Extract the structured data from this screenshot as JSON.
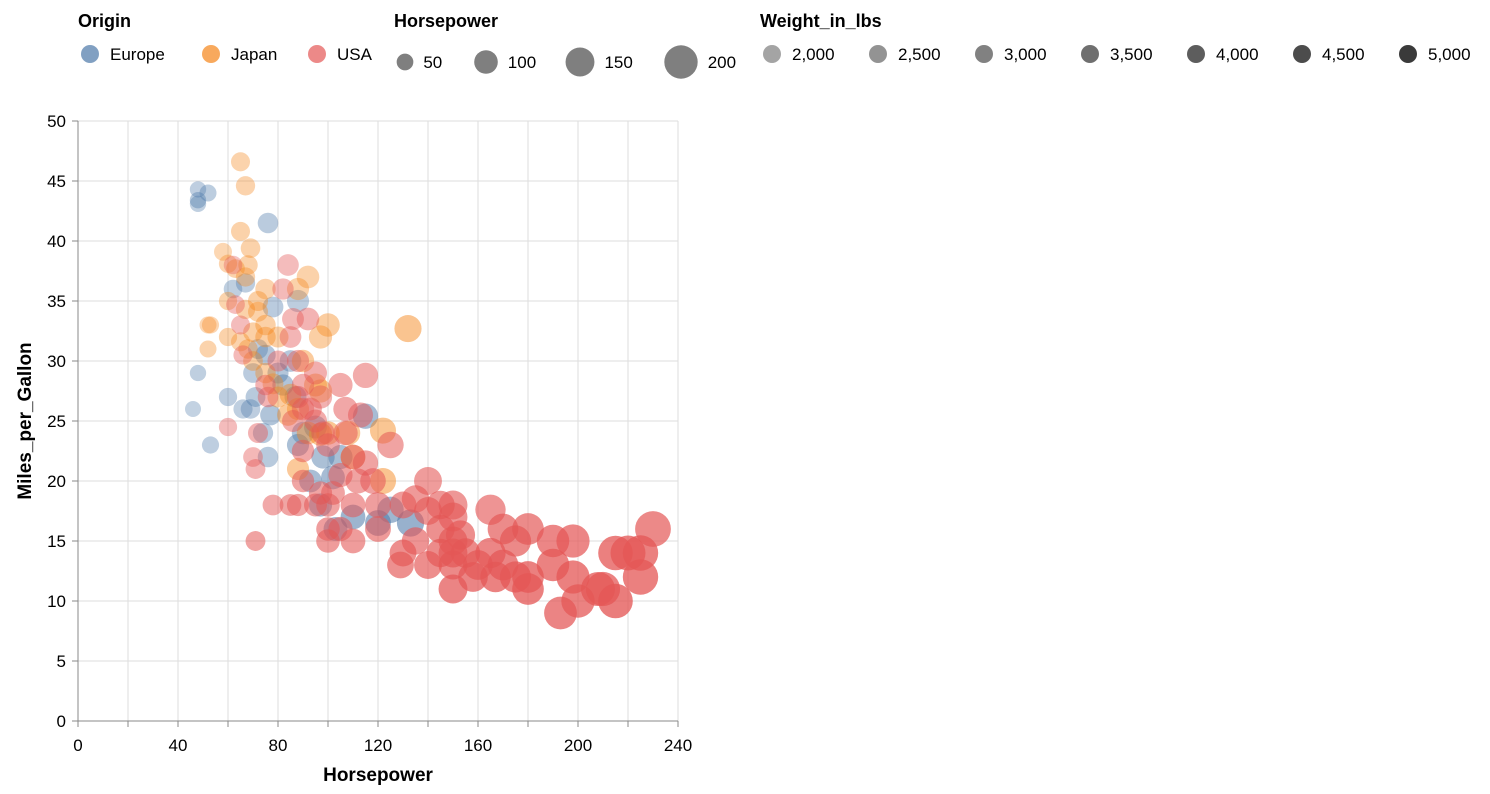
{
  "chart_data": {
    "type": "scatter",
    "xlabel": "Horsepower",
    "ylabel": "Miles_per_Gallon",
    "xlim": [
      0,
      240
    ],
    "ylim": [
      0,
      50
    ],
    "x_ticks": [
      0,
      20,
      40,
      60,
      80,
      100,
      120,
      140,
      160,
      180,
      200,
      220,
      240
    ],
    "x_tick_labels": [
      "0",
      "",
      "40",
      "",
      "80",
      "",
      "120",
      "",
      "160",
      "",
      "200",
      "",
      "240"
    ],
    "y_ticks": [
      0,
      5,
      10,
      15,
      20,
      25,
      30,
      35,
      40,
      45,
      50
    ],
    "y_tick_labels": [
      "0",
      "5",
      "10",
      "15",
      "20",
      "25",
      "30",
      "35",
      "40",
      "45",
      "50"
    ],
    "grid": true,
    "legend_placement": "top",
    "encoding": {
      "color": "Origin",
      "size": "Horsepower",
      "opacity": "Weight_in_lbs"
    },
    "legends": {
      "origin": {
        "title": "Origin",
        "items": [
          {
            "label": "Europe",
            "color": "#4c78a8"
          },
          {
            "label": "Japan",
            "color": "#f58518"
          },
          {
            "label": "USA",
            "color": "#e45756"
          }
        ]
      },
      "horsepower": {
        "title": "Horsepower",
        "items": [
          {
            "label": "50",
            "value": 50
          },
          {
            "label": "100",
            "value": 100
          },
          {
            "label": "150",
            "value": 150
          },
          {
            "label": "200",
            "value": 200
          }
        ]
      },
      "weight": {
        "title": "Weight_in_lbs",
        "items": [
          {
            "label": "2,000",
            "value": 2000
          },
          {
            "label": "2,500",
            "value": 2500
          },
          {
            "label": "3,000",
            "value": 3000
          },
          {
            "label": "3,500",
            "value": 3500
          },
          {
            "label": "4,000",
            "value": 4000
          },
          {
            "label": "4,500",
            "value": 4500
          },
          {
            "label": "5,000",
            "value": 5000
          }
        ]
      }
    },
    "series": [
      {
        "name": "Europe",
        "color": "#4c78a8",
        "points": [
          [
            46,
            26,
            1850
          ],
          [
            48,
            44.3,
            2050
          ],
          [
            48,
            43.4,
            2300
          ],
          [
            48,
            43.1,
            2000
          ],
          [
            52,
            44,
            2130
          ],
          [
            48,
            29,
            2000
          ],
          [
            53,
            23,
            2050
          ],
          [
            60,
            27,
            2100
          ],
          [
            62,
            36,
            2000
          ],
          [
            67,
            36.5,
            2100
          ],
          [
            66,
            26,
            2000
          ],
          [
            69,
            26,
            2100
          ],
          [
            70,
            29,
            2200
          ],
          [
            71,
            27,
            2300
          ],
          [
            72,
            31,
            2200
          ],
          [
            74,
            24,
            2300
          ],
          [
            75,
            30.5,
            2450
          ],
          [
            76,
            41.5,
            2200
          ],
          [
            76,
            22,
            2300
          ],
          [
            77,
            25.5,
            2600
          ],
          [
            78,
            34.5,
            2200
          ],
          [
            80,
            29,
            2500
          ],
          [
            82,
            28,
            2600
          ],
          [
            85,
            30,
            2400
          ],
          [
            87,
            27,
            2500
          ],
          [
            88,
            35,
            2100
          ],
          [
            88,
            23,
            2800
          ],
          [
            90,
            24,
            2600
          ],
          [
            93,
            20,
            2900
          ],
          [
            95,
            24.5,
            2700
          ],
          [
            97,
            18,
            3000
          ],
          [
            98,
            22,
            2800
          ],
          [
            102,
            20.3,
            3000
          ],
          [
            103,
            16,
            3200
          ],
          [
            105,
            22,
            2900
          ],
          [
            110,
            17,
            3400
          ],
          [
            115,
            25.4,
            3000
          ],
          [
            120,
            16.5,
            3500
          ],
          [
            125,
            17.6,
            3300
          ],
          [
            133,
            16.5,
            3600
          ]
        ]
      },
      {
        "name": "Japan",
        "color": "#f58518",
        "points": [
          [
            65,
            46.6,
            2050
          ],
          [
            67,
            44.6,
            2000
          ],
          [
            65,
            40.8,
            2100
          ],
          [
            58,
            39.1,
            1800
          ],
          [
            69,
            39.4,
            2100
          ],
          [
            60,
            38.1,
            1900
          ],
          [
            63,
            37.7,
            2050
          ],
          [
            67,
            37,
            2000
          ],
          [
            68,
            38,
            2100
          ],
          [
            75,
            36,
            2000
          ],
          [
            92,
            37,
            2100
          ],
          [
            52,
            33,
            1800
          ],
          [
            53,
            33,
            1900
          ],
          [
            52,
            31,
            2050
          ],
          [
            60,
            32,
            2100
          ],
          [
            65,
            31.6,
            2000
          ],
          [
            68,
            31,
            2050
          ],
          [
            70,
            32.4,
            2200
          ],
          [
            72,
            34.1,
            2100
          ],
          [
            75,
            32,
            2300
          ],
          [
            75,
            33,
            2200
          ],
          [
            80,
            32,
            2300
          ],
          [
            88,
            36,
            2100
          ],
          [
            97,
            32,
            2300
          ],
          [
            100,
            33,
            2400
          ],
          [
            132,
            32.7,
            2900
          ],
          [
            60,
            35,
            1980
          ],
          [
            70,
            30,
            2200
          ],
          [
            75,
            29,
            2300
          ],
          [
            80,
            27,
            2400
          ],
          [
            85,
            27.2,
            2500
          ],
          [
            88,
            26,
            2400
          ],
          [
            90,
            30,
            2500
          ],
          [
            92,
            24,
            2600
          ],
          [
            95,
            28,
            2500
          ],
          [
            97,
            23.9,
            2700
          ],
          [
            100,
            24,
            2800
          ],
          [
            108,
            24,
            2700
          ],
          [
            110,
            22,
            2700
          ],
          [
            122,
            24.2,
            2800
          ],
          [
            122,
            20,
            2900
          ],
          [
            88,
            21,
            2600
          ],
          [
            97,
            27.5,
            2300
          ],
          [
            78,
            28.1,
            2200
          ],
          [
            67,
            34.3,
            2100
          ],
          [
            72,
            35,
            2200
          ],
          [
            84,
            25.5,
            2500
          ]
        ]
      },
      {
        "name": "USA",
        "color": "#e45756",
        "points": [
          [
            62,
            38,
            2000
          ],
          [
            63,
            34.7,
            2200
          ],
          [
            65,
            33,
            2300
          ],
          [
            66,
            30.5,
            2400
          ],
          [
            60,
            24.5,
            2300
          ],
          [
            70,
            22,
            2500
          ],
          [
            71,
            21,
            2600
          ],
          [
            71,
            15,
            3400
          ],
          [
            72,
            24,
            2700
          ],
          [
            76,
            27,
            2700
          ],
          [
            78,
            18,
            3100
          ],
          [
            84,
            38,
            2300
          ],
          [
            85,
            32,
            2600
          ],
          [
            85,
            18,
            3300
          ],
          [
            86,
            33.5,
            2500
          ],
          [
            88,
            30,
            2700
          ],
          [
            88,
            18,
            3300
          ],
          [
            90,
            26,
            2800
          ],
          [
            90,
            20,
            3300
          ],
          [
            90,
            28,
            2800
          ],
          [
            92,
            33.5,
            2700
          ],
          [
            95,
            25,
            3000
          ],
          [
            95,
            18,
            3400
          ],
          [
            97,
            19,
            3300
          ],
          [
            100,
            16,
            3600
          ],
          [
            100,
            15,
            3700
          ],
          [
            100,
            18,
            3400
          ],
          [
            100,
            23,
            3100
          ],
          [
            105,
            28,
            3000
          ],
          [
            105,
            16,
            3600
          ],
          [
            105,
            20.5,
            3400
          ],
          [
            107,
            26,
            3200
          ],
          [
            110,
            15,
            3700
          ],
          [
            110,
            18,
            3500
          ],
          [
            110,
            22,
            3300
          ],
          [
            112,
            20,
            3400
          ],
          [
            113,
            25.5,
            3100
          ],
          [
            115,
            28.8,
            3000
          ],
          [
            115,
            21.5,
            3400
          ],
          [
            120,
            18,
            3600
          ],
          [
            120,
            16,
            3800
          ],
          [
            125,
            23,
            3400
          ],
          [
            129,
            13,
            4200
          ],
          [
            130,
            14,
            4300
          ],
          [
            130,
            18,
            3800
          ],
          [
            135,
            15,
            4000
          ],
          [
            140,
            13,
            4300
          ],
          [
            140,
            20,
            3700
          ],
          [
            140,
            17.5,
            3900
          ],
          [
            145,
            14,
            4400
          ],
          [
            145,
            16,
            4200
          ],
          [
            150,
            13,
            4500
          ],
          [
            150,
            15,
            4300
          ],
          [
            150,
            11,
            4700
          ],
          [
            150,
            14,
            4400
          ],
          [
            150,
            17,
            4000
          ],
          [
            150,
            18,
            3900
          ],
          [
            153,
            15.5,
            4300
          ],
          [
            155,
            14,
            4500
          ],
          [
            158,
            12,
            4700
          ],
          [
            160,
            13,
            4500
          ],
          [
            165,
            17.6,
            4000
          ],
          [
            165,
            14,
            4600
          ],
          [
            167,
            12,
            4800
          ],
          [
            170,
            16,
            4400
          ],
          [
            170,
            13,
            4700
          ],
          [
            175,
            12,
            4800
          ],
          [
            175,
            15,
            4500
          ],
          [
            180,
            11,
            4900
          ],
          [
            180,
            12,
            4900
          ],
          [
            180,
            16,
            4400
          ],
          [
            190,
            15,
            4600
          ],
          [
            190,
            13,
            4800
          ],
          [
            193,
            9,
            4700
          ],
          [
            198,
            12,
            4900
          ],
          [
            198,
            15,
            4600
          ],
          [
            200,
            10,
            4800
          ],
          [
            208,
            11,
            4900
          ],
          [
            210,
            11,
            4800
          ],
          [
            215,
            14,
            4900
          ],
          [
            215,
            10,
            5000
          ],
          [
            220,
            14,
            4900
          ],
          [
            225,
            14,
            4900
          ],
          [
            225,
            12,
            4900
          ],
          [
            230,
            16,
            4500
          ],
          [
            97,
            27,
            2800
          ],
          [
            98,
            24,
            3100
          ],
          [
            88,
            27,
            2900
          ],
          [
            75,
            28,
            2700
          ],
          [
            93,
            26,
            3000
          ],
          [
            90,
            22.5,
            3200
          ],
          [
            82,
            36,
            2400
          ],
          [
            80,
            30,
            2600
          ],
          [
            86,
            25,
            2900
          ],
          [
            95,
            29,
            2900
          ],
          [
            102,
            19,
            3400
          ],
          [
            107,
            24,
            3200
          ],
          [
            118,
            20,
            3500
          ],
          [
            135,
            18.5,
            3800
          ],
          [
            145,
            18,
            3900
          ]
        ]
      }
    ]
  }
}
